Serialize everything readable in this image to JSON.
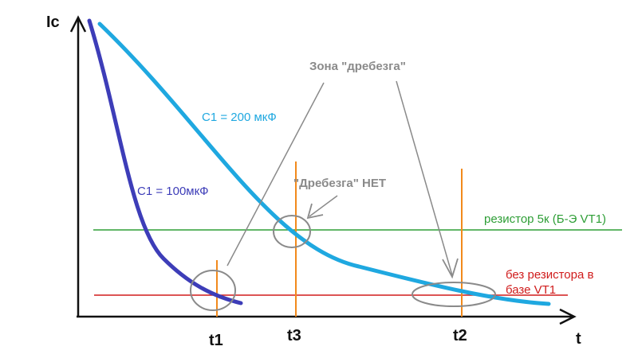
{
  "chart_data": {
    "type": "line",
    "title": "",
    "xlabel": "t",
    "ylabel": "Ic",
    "grid": false,
    "legend": "none",
    "series": [
      {
        "name": "C1 = 200 мкФ",
        "color": "#1fa8e0"
      },
      {
        "name": "C1 = 100мкФ",
        "color": "#3d3db8"
      }
    ],
    "thresholds": [
      {
        "label": "резистор 5к (Б-Э VT1)",
        "color": "#2e9e36"
      },
      {
        "label_line1": "без резистора в",
        "label_line2": "базе VT1",
        "color": "#d01c1c"
      }
    ],
    "time_markers": [
      "t1",
      "t3",
      "t2"
    ],
    "marker_color": "#f28a1c",
    "annotations": {
      "bounce_zone": "Зона \"дребезга\"",
      "no_bounce": "\"Дребезга\" НЕТ"
    },
    "annotation_color": "#8a8a8a"
  }
}
